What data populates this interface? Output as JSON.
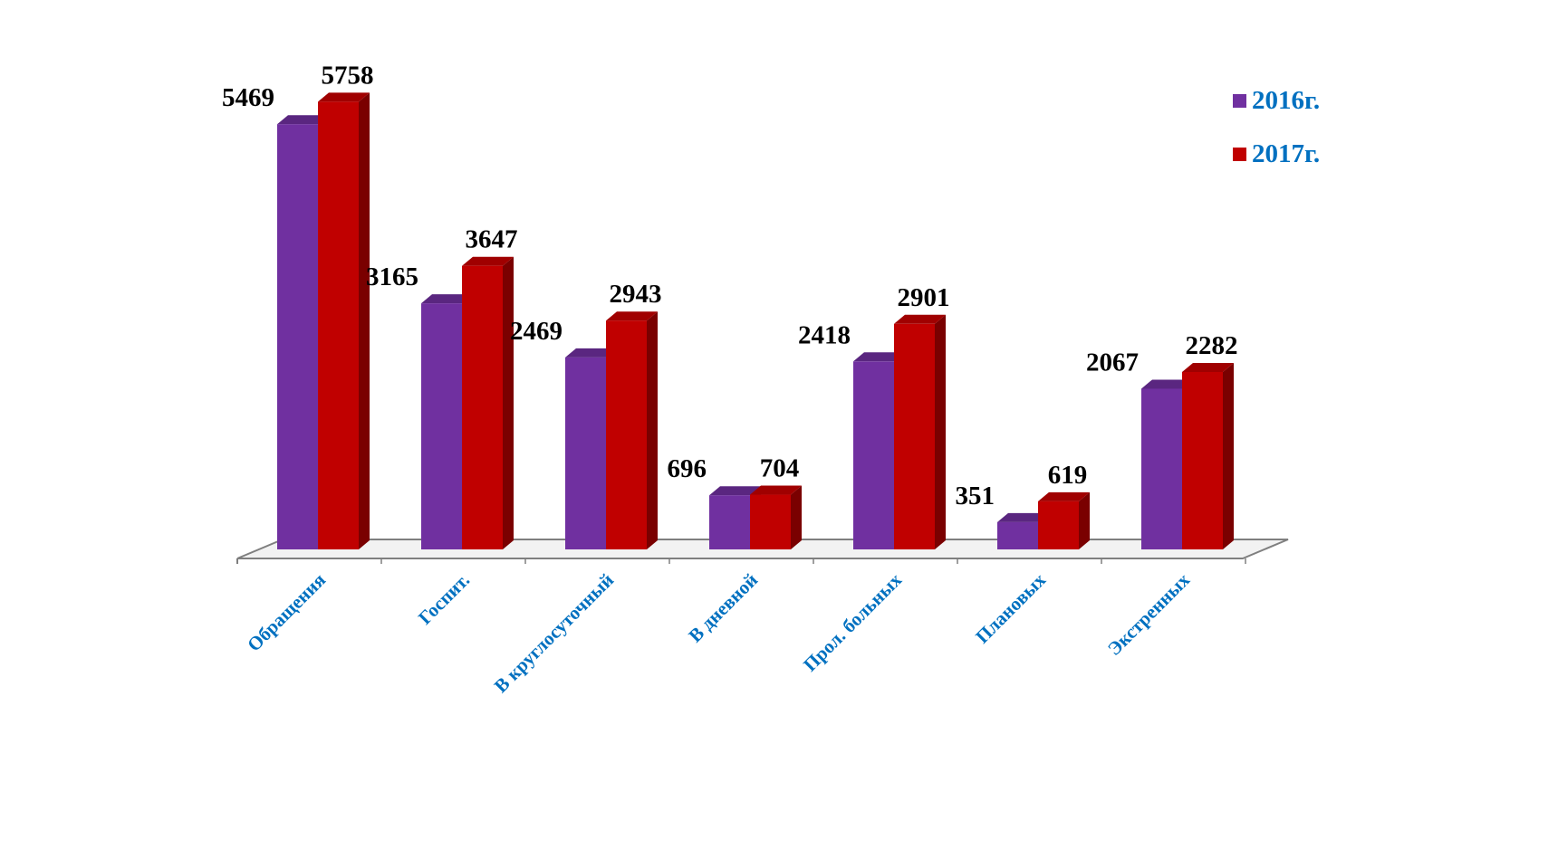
{
  "chart_data": {
    "type": "bar",
    "categories": [
      "Обращения",
      "Госпит.",
      "В круглосуточный",
      "В дневной",
      "Прол. больных",
      "Плановых",
      "Экстренных"
    ],
    "series": [
      {
        "name": "2016г.",
        "values": [
          5469,
          3165,
          2469,
          696,
          2418,
          351,
          2067
        ]
      },
      {
        "name": "2017г.",
        "values": [
          5758,
          3647,
          2943,
          704,
          2901,
          619,
          2282
        ]
      }
    ],
    "title": "",
    "xlabel": "",
    "ylabel": "",
    "ylim": [
      0,
      6000
    ],
    "grid": false,
    "legend_position": "top-right",
    "colors": {
      "series": [
        "#7030a0",
        "#c00000"
      ],
      "series_top": [
        "#5a2680",
        "#a00000"
      ],
      "series_side": [
        "#4a1e6c",
        "#7a0000"
      ],
      "category_text": "#0070c0",
      "legend_text": "#0070c0",
      "floor_edge": "#7f7f7f"
    }
  }
}
